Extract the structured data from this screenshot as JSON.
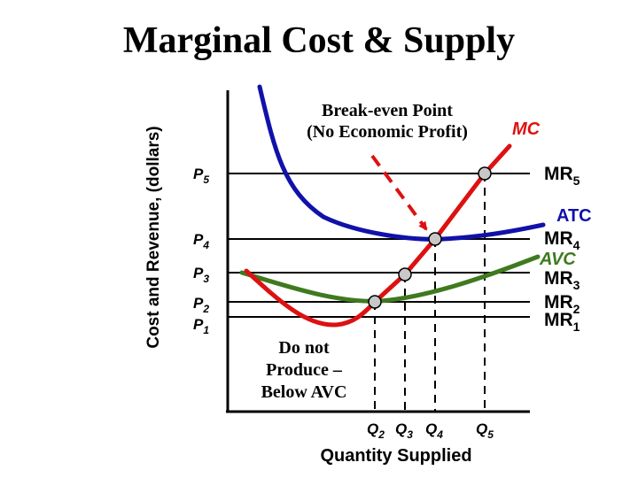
{
  "title": "Marginal Cost & Supply",
  "y_axis_label": "Cost and Revenue, (dollars)",
  "x_axis_label": "Quantity Supplied",
  "annotations": {
    "break_even_line1": "Break-even Point",
    "break_even_line2": "(No Economic Profit)",
    "below_avc_line1": "Do not",
    "below_avc_line2": "Produce –",
    "below_avc_line3": "Below AVC"
  },
  "curves": {
    "mc": "MC",
    "atc": "ATC",
    "avc": "AVC"
  },
  "price_lines": [
    {
      "price": "P",
      "price_sub": "5",
      "mr": "MR",
      "mr_sub": "5"
    },
    {
      "price": "P",
      "price_sub": "4",
      "mr": "MR",
      "mr_sub": "4"
    },
    {
      "price": "P",
      "price_sub": "3",
      "mr": "MR",
      "mr_sub": "3"
    },
    {
      "price": "P",
      "price_sub": "2",
      "mr": "MR",
      "mr_sub": "2"
    },
    {
      "price": "P",
      "price_sub": "1",
      "mr": "MR",
      "mr_sub": "1"
    }
  ],
  "quantities": [
    {
      "q": "Q",
      "sub": "2"
    },
    {
      "q": "Q",
      "sub": "3"
    },
    {
      "q": "Q",
      "sub": "4"
    },
    {
      "q": "Q",
      "sub": "5"
    }
  ],
  "colors": {
    "mc": "#dd1111",
    "atc": "#1111aa",
    "avc": "#3f7a1f",
    "point": "#c8c8c8",
    "arrow": "#dd1111",
    "axis": "#000000"
  }
}
